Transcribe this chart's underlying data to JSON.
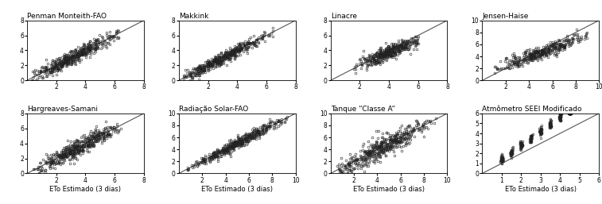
{
  "panels": [
    {
      "title": "Penman Monteith-FAO",
      "xlim": [
        0,
        8
      ],
      "ylim": [
        0,
        8
      ],
      "xticks": [
        2,
        4,
        6,
        8
      ],
      "yticks": [
        0,
        2,
        4,
        6,
        8
      ],
      "seed": 1,
      "n": 500,
      "slope": 1.0,
      "intercept": 0.0,
      "noise": 0.45,
      "xrange": [
        0.3,
        6.5
      ],
      "xconc": 3.0,
      "xstd": 1.5
    },
    {
      "title": "Makkink",
      "xlim": [
        0,
        8
      ],
      "ylim": [
        0,
        8
      ],
      "xticks": [
        2,
        4,
        6,
        8
      ],
      "yticks": [
        0,
        2,
        4,
        6,
        8
      ],
      "seed": 2,
      "n": 500,
      "slope": 1.0,
      "intercept": 0.0,
      "noise": 0.4,
      "xrange": [
        0.3,
        6.5
      ],
      "xconc": 3.0,
      "xstd": 1.5
    },
    {
      "title": "Linacre",
      "xlim": [
        0,
        8
      ],
      "ylim": [
        0,
        8
      ],
      "xticks": [
        2,
        4,
        6,
        8
      ],
      "yticks": [
        0,
        2,
        4,
        6,
        8
      ],
      "seed": 3,
      "n": 450,
      "slope": 0.82,
      "intercept": 0.5,
      "noise": 0.45,
      "xrange": [
        1.5,
        6.0
      ],
      "xconc": 4.0,
      "xstd": 1.0
    },
    {
      "title": "Jensen-Haise",
      "xlim": [
        0,
        10
      ],
      "ylim": [
        0,
        10
      ],
      "xticks": [
        2,
        4,
        6,
        8,
        10
      ],
      "yticks": [
        0,
        2,
        4,
        6,
        8,
        10
      ],
      "seed": 4,
      "n": 400,
      "slope": 0.73,
      "intercept": 1.0,
      "noise": 0.55,
      "xrange": [
        1.0,
        9.0
      ],
      "xconc": 5.0,
      "xstd": 2.0
    },
    {
      "title": "Hargreaves-Samani",
      "xlim": [
        0,
        8
      ],
      "ylim": [
        0,
        8
      ],
      "xticks": [
        2,
        4,
        6,
        8
      ],
      "yticks": [
        0,
        2,
        4,
        6,
        8
      ],
      "seed": 5,
      "n": 500,
      "slope": 1.0,
      "intercept": 0.0,
      "noise": 0.55,
      "xrange": [
        0.3,
        6.5
      ],
      "xconc": 3.5,
      "xstd": 1.5
    },
    {
      "title": "Radiação Solar-FAO",
      "xlim": [
        0,
        10
      ],
      "ylim": [
        0,
        10
      ],
      "xticks": [
        2,
        4,
        6,
        8,
        10
      ],
      "yticks": [
        0,
        2,
        4,
        6,
        8,
        10
      ],
      "seed": 6,
      "n": 500,
      "slope": 1.0,
      "intercept": 0.0,
      "noise": 0.45,
      "xrange": [
        0.5,
        9.5
      ],
      "xconc": 5.0,
      "xstd": 2.0
    },
    {
      "title": "Tanque “Classe A”",
      "xlim": [
        0,
        10
      ],
      "ylim": [
        0,
        10
      ],
      "xticks": [
        2,
        4,
        6,
        8,
        10
      ],
      "yticks": [
        0,
        2,
        4,
        6,
        8,
        10
      ],
      "seed": 7,
      "n": 500,
      "slope": 1.0,
      "intercept": 0.0,
      "noise": 0.85,
      "xrange": [
        0.5,
        9.0
      ],
      "xconc": 4.5,
      "xstd": 2.0
    },
    {
      "title": "Atmômetro SEEI Modificado",
      "xlim": [
        0,
        6
      ],
      "ylim": [
        0,
        6
      ],
      "xticks": [
        1,
        2,
        3,
        4,
        5,
        6
      ],
      "yticks": [
        0,
        1,
        2,
        3,
        4,
        5,
        6
      ],
      "seed": 8,
      "n": 350,
      "slope": 1.4,
      "intercept": 0.0,
      "noise": 0.2,
      "xrange": [
        0.8,
        4.5
      ],
      "vertical_bands": true,
      "band_centers": [
        1.0,
        1.5,
        2.0,
        2.5,
        3.0,
        3.5,
        4.0,
        4.5
      ]
    }
  ],
  "xlabel": "ETo Estimado (3 dias)",
  "marker": "o",
  "markersize": 2.0,
  "markerfacecolor": "none",
  "markeredgecolor": "#222222",
  "markeredgewidth": 0.4,
  "linecolor": "#555555",
  "linewidth": 0.8,
  "title_fontsize": 6.5,
  "tick_fontsize": 5.5,
  "xlabel_fontsize": 6.0,
  "bg_color": "#ffffff"
}
